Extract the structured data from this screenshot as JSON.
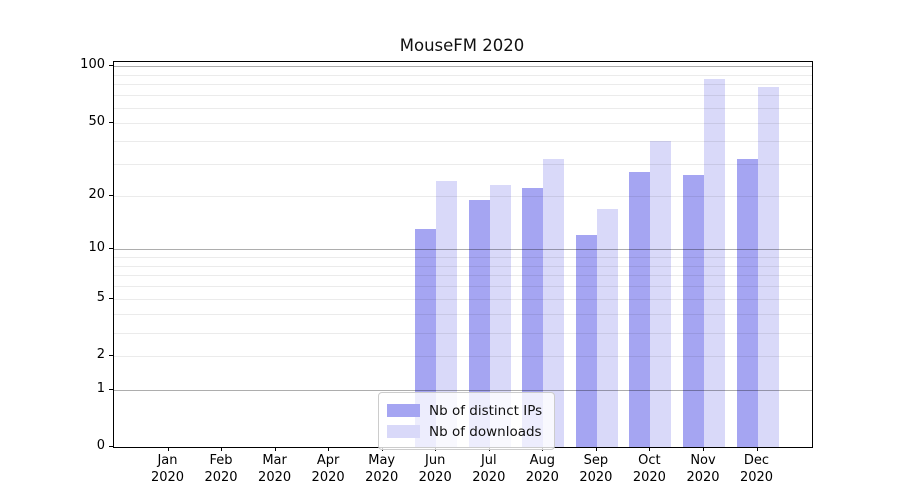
{
  "chart_data": {
    "type": "bar",
    "title": "MouseFM 2020",
    "categories": [
      "Jan",
      "Feb",
      "Mar",
      "Apr",
      "May",
      "Jun",
      "Jul",
      "Aug",
      "Sep",
      "Oct",
      "Nov",
      "Dec"
    ],
    "category_year": "2020",
    "series": [
      {
        "name": "Nb of distinct IPs",
        "color": "#a5a5f2",
        "values": [
          0,
          0,
          0,
          0,
          0,
          13,
          19,
          22,
          12,
          27,
          26,
          32
        ]
      },
      {
        "name": "Nb of downloads",
        "color": "#d9d9f9",
        "values": [
          0,
          0,
          0,
          0,
          0,
          24,
          23,
          32,
          17,
          40,
          86,
          78
        ]
      }
    ],
    "y_ticks": [
      100,
      50,
      20,
      10,
      5,
      2,
      1,
      0
    ],
    "major_gridlines": [
      1,
      10,
      100
    ],
    "minor_gridlines": [
      2,
      3,
      4,
      5,
      6,
      7,
      8,
      9,
      20,
      30,
      40,
      50,
      60,
      70,
      80,
      90
    ],
    "scale": "log10(1+x)",
    "ylim": [
      0,
      105
    ],
    "grid_on": true,
    "legend_position": "lower center",
    "colors": {
      "bar_distinct_ips": "#a5a5f2",
      "bar_downloads": "#d9d9f9",
      "axis": "#000000",
      "legend_border": "#cccccc",
      "background": "#ffffff"
    }
  }
}
